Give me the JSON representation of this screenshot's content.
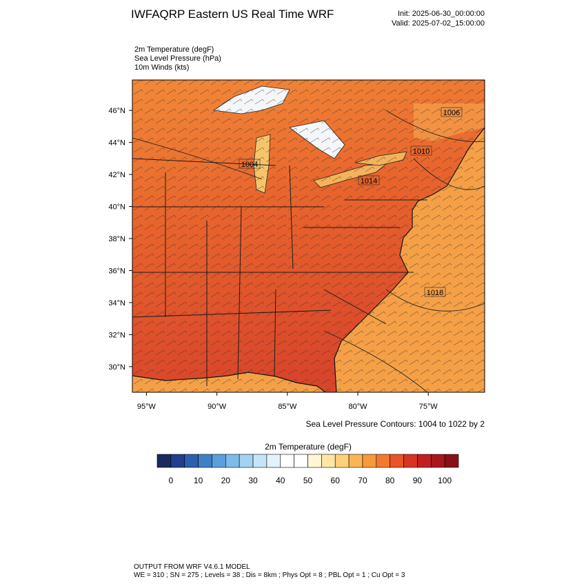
{
  "header": {
    "title": "IWFAQRP Eastern US Real Time WRF",
    "init": "Init: 2025-06-30_00:00:00",
    "valid": "Valid: 2025-07-02_15:00:00",
    "fields": [
      "2m Temperature   (degF)",
      "Sea Level Pressure   (hPa)",
      "10m Winds   (kts)"
    ]
  },
  "map": {
    "xlim": [
      -96,
      -71
    ],
    "ylim": [
      28.4,
      47.9
    ],
    "lat_ticks": [
      {
        "value": 30,
        "label": "30°N"
      },
      {
        "value": 32,
        "label": "32°N"
      },
      {
        "value": 34,
        "label": "34°N"
      },
      {
        "value": 36,
        "label": "36°N"
      },
      {
        "value": 38,
        "label": "38°N"
      },
      {
        "value": 40,
        "label": "40°N"
      },
      {
        "value": 42,
        "label": "42°N"
      },
      {
        "value": 44,
        "label": "44°N"
      },
      {
        "value": 46,
        "label": "46°N"
      }
    ],
    "lon_ticks": [
      {
        "value": -95,
        "label": "95°W"
      },
      {
        "value": -90,
        "label": "90°W"
      },
      {
        "value": -85,
        "label": "85°W"
      },
      {
        "value": -80,
        "label": "80°W"
      },
      {
        "value": -75,
        "label": "75°W"
      }
    ],
    "contour_labels": [
      "1006",
      "1010",
      "1004",
      "1014",
      "1018"
    ],
    "contour_caption": "Sea Level Pressure Contours: 1004 to 1022 by 2"
  },
  "colorbar": {
    "title": "2m Temperature  (degF)",
    "ticks": [
      0,
      10,
      20,
      30,
      40,
      50,
      60,
      70,
      80,
      90,
      100
    ],
    "colors": [
      "#1a2a5e",
      "#213f8c",
      "#2c5fad",
      "#3f7fc7",
      "#5b9fdb",
      "#7dbbea",
      "#a3d2f2",
      "#c6e4f7",
      "#e4f2fb",
      "#ffffff",
      "#ffffff",
      "#fff6d6",
      "#fee6a6",
      "#fdd07a",
      "#fbb653",
      "#f89a3a",
      "#f27a2f",
      "#e75528",
      "#d73424",
      "#c21f22",
      "#a8161e",
      "#8a1018"
    ]
  },
  "footer": {
    "lines": [
      "OUTPUT FROM WRF V4.6.1 MODEL",
      "WE = 310 ; SN = 275 ; Levels = 38 ; Dis = 8km ; Phys Opt = 8 ; PBL Opt = 1 ; Cu Opt = 3"
    ]
  }
}
